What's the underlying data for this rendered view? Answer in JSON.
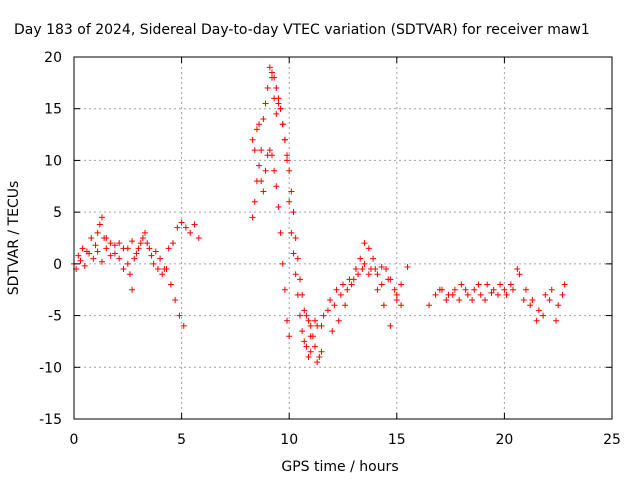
{
  "chart_data": {
    "type": "scatter",
    "title": "Day 183 of 2024, Sidereal Day-to-day VTEC variation (SDTVAR) for receiver maw1",
    "xlabel": "GPS time / hours",
    "ylabel": "SDTVAR / TECUs",
    "xlim": [
      0,
      25
    ],
    "ylim": [
      -15,
      20
    ],
    "xticks": [
      0,
      5,
      10,
      15,
      20,
      25
    ],
    "yticks": [
      -15,
      -10,
      -5,
      0,
      5,
      10,
      15,
      20
    ],
    "grid": true,
    "marker": "plus",
    "color": "#ff0000",
    "series": [
      {
        "name": "SDTVAR",
        "segments": [
          {
            "x": [
              0.0,
              0.2,
              0.4,
              0.6,
              0.8,
              1.0,
              1.1,
              1.2,
              1.3,
              1.4,
              1.5,
              1.7,
              1.9,
              2.1,
              2.3,
              2.5,
              2.6,
              2.7,
              2.8,
              3.0,
              3.2,
              3.4,
              3.6,
              3.8,
              4.0,
              4.2,
              4.4,
              4.6,
              4.8,
              5.0,
              5.2,
              5.4,
              5.6,
              5.8
            ],
            "y": [
              0.0,
              0.8,
              1.5,
              1.2,
              2.5,
              1.8,
              3.0,
              3.8,
              4.5,
              2.5,
              1.5,
              0.8,
              1.8,
              2.0,
              1.5,
              0.0,
              -1.0,
              -2.5,
              0.5,
              1.5,
              2.5,
              2.0,
              0.8,
              1.2,
              0.5,
              -0.5,
              1.5,
              2.0,
              3.5,
              4.0,
              3.5,
              3.0,
              3.8,
              2.5
            ]
          },
          {
            "x": [
              0.1,
              0.3,
              0.5,
              0.7,
              0.9,
              1.1,
              1.3,
              1.5,
              1.7,
              1.9,
              2.1,
              2.3,
              2.5,
              2.7,
              2.9,
              3.1,
              3.3,
              3.5,
              3.7,
              3.9,
              4.1,
              4.3,
              4.5,
              4.7,
              4.9,
              5.1
            ],
            "y": [
              -0.5,
              0.3,
              -0.2,
              1.0,
              0.5,
              1.2,
              0.2,
              2.5,
              2.0,
              1.0,
              0.5,
              -0.5,
              1.5,
              2.2,
              1.0,
              2.0,
              3.0,
              1.5,
              0.0,
              -0.5,
              -1.0,
              -0.5,
              -2.0,
              -3.5,
              -5.0,
              -6.0
            ]
          },
          {
            "x": [
              8.3,
              8.4,
              8.5,
              8.6,
              8.7,
              8.8,
              8.9,
              9.0,
              9.1,
              9.2,
              9.3,
              9.4,
              9.5,
              9.6,
              9.7,
              9.8,
              9.9,
              10.0,
              10.1,
              10.2,
              10.3,
              10.4,
              10.5,
              10.6,
              10.7,
              10.8,
              10.9,
              11.0,
              11.1,
              11.2,
              11.3,
              11.4,
              11.5
            ],
            "y": [
              12.0,
              11.0,
              13.0,
              13.5,
              11.0,
              14.0,
              15.5,
              17.0,
              19.0,
              18.0,
              16.0,
              14.5,
              15.5,
              15.0,
              13.5,
              12.0,
              10.0,
              6.0,
              3.0,
              1.0,
              -1.0,
              -3.0,
              -5.0,
              -6.5,
              -7.5,
              -8.0,
              -9.0,
              -8.5,
              -7.0,
              -8.0,
              -9.5,
              -9.0,
              -8.5
            ]
          },
          {
            "x": [
              8.3,
              8.4,
              8.5,
              8.6,
              8.7,
              8.8,
              8.9,
              9.0,
              9.1,
              9.2,
              9.3,
              9.4,
              9.5,
              9.6,
              9.7,
              9.8,
              9.9,
              10.0
            ],
            "y": [
              4.5,
              6.0,
              8.0,
              9.5,
              8.0,
              7.0,
              9.0,
              10.5,
              11.0,
              10.5,
              9.0,
              7.5,
              5.5,
              3.0,
              0.0,
              -2.5,
              -5.5,
              -7.0
            ]
          },
          {
            "x": [
              9.2,
              9.3,
              9.4,
              9.5,
              9.6,
              9.7,
              9.8,
              9.9,
              10.0,
              10.1,
              10.2,
              10.3,
              10.4,
              10.5,
              10.6,
              10.7,
              10.8,
              10.9,
              11.0
            ],
            "y": [
              18.5,
              18.0,
              17.0,
              16.0,
              15.0,
              13.5,
              12.0,
              10.5,
              9.0,
              7.0,
              5.0,
              2.5,
              0.5,
              -1.5,
              -3.0,
              -4.5,
              -5.0,
              -5.5,
              -6.0
            ]
          },
          {
            "x": [
              11.0,
              11.3,
              11.6,
              11.9,
              12.2,
              12.5,
              12.8,
              13.1,
              13.4,
              13.7,
              14.0,
              14.3,
              14.6,
              14.9,
              15.2,
              15.5
            ],
            "y": [
              -7.0,
              -6.0,
              -5.0,
              -3.5,
              -2.5,
              -2.0,
              -1.5,
              -0.5,
              -0.5,
              -1.0,
              -0.5,
              -0.3,
              -1.5,
              -2.5,
              -2.0,
              -0.3
            ]
          },
          {
            "x": [
              11.2,
              11.5,
              11.8,
              12.1,
              12.4,
              12.7,
              13.0,
              13.3,
              13.5,
              13.7,
              13.9,
              14.1,
              14.3,
              14.5,
              14.7,
              15.0,
              15.2
            ],
            "y": [
              -5.5,
              -6.0,
              -4.5,
              -4.0,
              -3.0,
              -2.5,
              -1.5,
              0.5,
              2.0,
              1.5,
              0.5,
              -1.0,
              -2.0,
              -0.5,
              -1.5,
              -3.5,
              -4.0
            ]
          },
          {
            "x": [
              12.0,
              12.3,
              12.6,
              12.9,
              13.2,
              13.5,
              13.8,
              14.1,
              14.4,
              14.7,
              15.0
            ],
            "y": [
              -6.5,
              -5.5,
              -4.0,
              -2.0,
              -1.0,
              0.0,
              -0.5,
              -2.5,
              -4.0,
              -6.0,
              -3.0
            ]
          },
          {
            "x": [
              16.5,
              16.8,
              17.1,
              17.4,
              17.7,
              18.0,
              18.3,
              18.6,
              18.9,
              19.2,
              19.5,
              19.8,
              20.1,
              20.4,
              20.7,
              21.0,
              21.3,
              21.6,
              21.9,
              22.2,
              22.5,
              22.8
            ],
            "y": [
              -4.0,
              -3.0,
              -2.5,
              -3.0,
              -2.5,
              -2.0,
              -3.0,
              -2.5,
              -3.0,
              -2.0,
              -2.5,
              -2.0,
              -3.0,
              -2.5,
              -1.0,
              -2.5,
              -3.5,
              -4.5,
              -3.0,
              -2.5,
              -4.0,
              -2.0
            ]
          },
          {
            "x": [
              17.0,
              17.3,
              17.6,
              17.9,
              18.2,
              18.5,
              18.8,
              19.1,
              19.4,
              19.7,
              20.0,
              20.3,
              20.6,
              20.9,
              21.2,
              21.5,
              21.8,
              22.1,
              22.4,
              22.7
            ],
            "y": [
              -2.5,
              -3.5,
              -3.0,
              -3.5,
              -2.5,
              -3.5,
              -2.0,
              -3.5,
              -2.8,
              -3.0,
              -2.5,
              -2.0,
              -0.5,
              -3.5,
              -4.0,
              -5.5,
              -5.0,
              -3.5,
              -5.5,
              -3.0
            ]
          }
        ]
      }
    ]
  }
}
